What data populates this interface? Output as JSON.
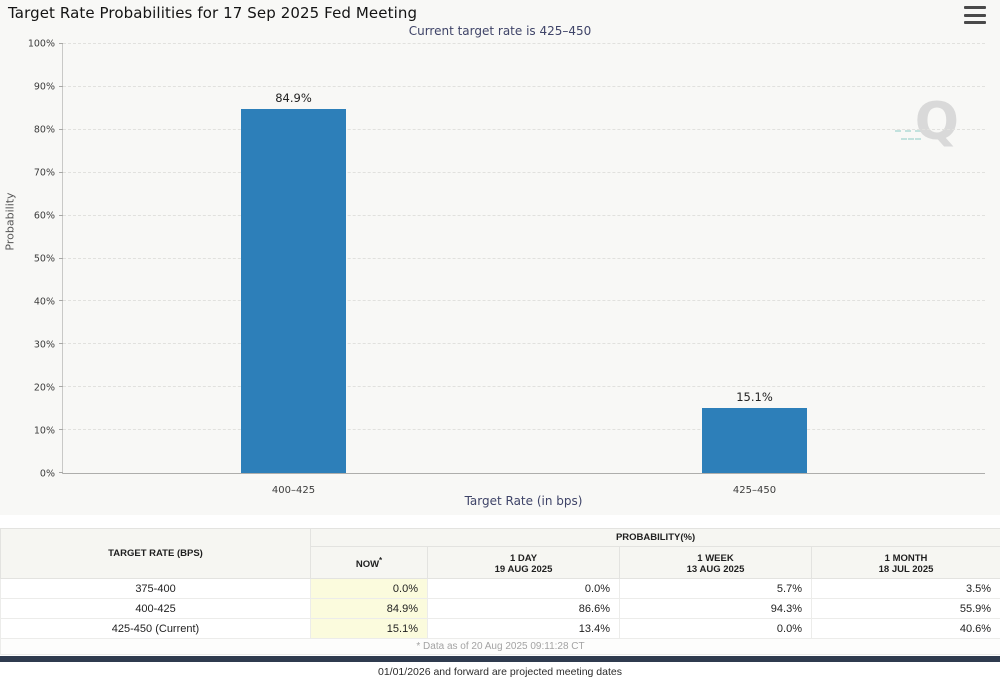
{
  "header": {
    "title": "Target Rate Probabilities for 17 Sep 2025 Fed Meeting",
    "subtitle": "Current target rate is 425–450"
  },
  "chart_data": {
    "type": "bar",
    "title": "Target Rate Probabilities for 17 Sep 2025 Fed Meeting",
    "subtitle": "Current target rate is 425–450",
    "categories": [
      "400–425",
      "425–450"
    ],
    "values": [
      84.9,
      15.1
    ],
    "value_labels": [
      "84.9%",
      "15.1%"
    ],
    "xlabel": "Target Rate (in bps)",
    "ylabel": "Probability",
    "ylim": [
      0,
      100
    ],
    "ytick_step": 10,
    "ytick_labels": [
      "0%",
      "10%",
      "20%",
      "30%",
      "40%",
      "50%",
      "60%",
      "70%",
      "80%",
      "90%",
      "100%"
    ],
    "bar_color": "#2d7fb9",
    "bar_width_pct": 11.4,
    "grid": "horizontal dashed",
    "legend": "none"
  },
  "watermark": {
    "letter": "Q"
  },
  "table": {
    "col1_header": "TARGET RATE (BPS)",
    "group_header": "PROBABILITY(%)",
    "columns": [
      {
        "line1": "NOW",
        "sup": "*",
        "line2": ""
      },
      {
        "line1": "1 DAY",
        "sup": "",
        "line2": "19 AUG 2025"
      },
      {
        "line1": "1 WEEK",
        "sup": "",
        "line2": "13 AUG 2025"
      },
      {
        "line1": "1 MONTH",
        "sup": "",
        "line2": "18 JUL 2025"
      }
    ],
    "rows": [
      [
        "375-400",
        "0.0%",
        "0.0%",
        "5.7%",
        "3.5%"
      ],
      [
        "400-425",
        "84.9%",
        "86.6%",
        "94.3%",
        "55.9%"
      ],
      [
        "425-450 (Current)",
        "15.1%",
        "13.4%",
        "0.0%",
        "40.6%"
      ]
    ],
    "footnote": "* Data as of 20 Aug 2025 09:11:28 CT"
  },
  "footer": {
    "note": "01/01/2026 and forward are projected meeting dates"
  },
  "colors": {
    "bar": "#2d7fb9",
    "accent_navy": "#3f4468",
    "now_column_highlight": "#fbfbdd",
    "bottom_bar": "#2f3b4f"
  }
}
